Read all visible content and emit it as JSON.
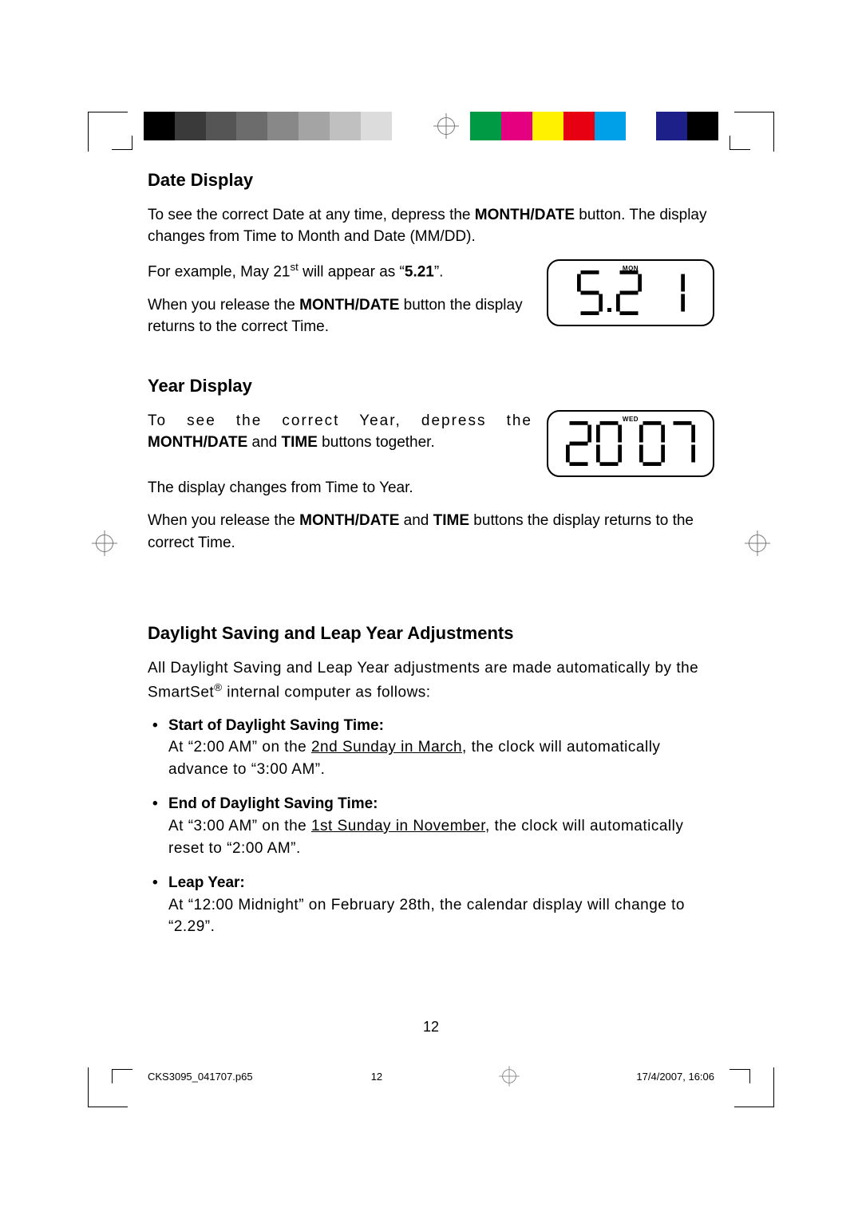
{
  "colorbar": {
    "left": [
      "#000000",
      "#3a3a3a",
      "#555555",
      "#6c6c6c",
      "#888888",
      "#a4a4a4",
      "#c0c0c0",
      "#dcdcdc",
      "#ffffff"
    ],
    "right": [
      "#009944",
      "#e4007f",
      "#fff100",
      "#e60012",
      "#00a0e9",
      "#ffffff",
      "#1d2088",
      "#000000"
    ]
  },
  "sections": {
    "date": {
      "heading": "Date Display",
      "p1_a": "To see the correct Date at any time, depress the ",
      "p1_b": "MONTH/DATE",
      "p1_c": " button. The display changes from Time to Month and Date (MM/DD).",
      "p2_a": "For example, May 21",
      "p2_sup": "st",
      "p2_b": " will appear as “",
      "p2_bold": "5.21",
      "p2_c": "”.",
      "p3_a": "When you release the ",
      "p3_b": "MONTH/DATE",
      "p3_c": " button the display returns to the correct Time.",
      "lcd_day": "MON",
      "lcd_digits": "5.21"
    },
    "year": {
      "heading": "Year Display",
      "p1_a": "To see the correct Year, depress the ",
      "p1_b": "MONTH/DATE",
      "p1_c": " and ",
      "p1_d": "TIME",
      "p1_e": " buttons together.",
      "p2": "The display changes from Time to Year.",
      "p3_a": "When you release the ",
      "p3_b": "MONTH/DATE",
      "p3_c": " and ",
      "p3_d": "TIME",
      "p3_e": " buttons the display returns to the correct Time.",
      "lcd_day": "WED",
      "lcd_digits": "2007"
    },
    "dst": {
      "heading": "Daylight Saving and Leap Year Adjustments",
      "intro_a": "All Daylight Saving and Leap Year adjustments are made automatically by the SmartSet",
      "intro_sup": "®",
      "intro_b": " internal computer as follows:",
      "items": [
        {
          "title": "Start of Daylight Saving Time:",
          "body_a": "At “2:00 AM” on the ",
          "body_u": "2nd Sunday in March",
          "body_b": ", the clock will automatically advance to “3:00 AM”."
        },
        {
          "title": "End of Daylight Saving Time:",
          "body_a": "At “3:00 AM” on the ",
          "body_u": "1st Sunday in November",
          "body_b": ", the clock will automatically reset to “2:00 AM”."
        },
        {
          "title": "Leap Year:",
          "body_a": "At “12:00 Midnight” on February 28th, the calendar display will change to “2.29”.",
          "body_u": "",
          "body_b": ""
        }
      ]
    }
  },
  "page_number": "12",
  "footer": {
    "file": "CKS3095_041707.p65",
    "page": "12",
    "timestamp": "17/4/2007, 16:06"
  },
  "seven_segment": {
    "stroke": "#000000",
    "stroke_width": 5,
    "digit_w": 32,
    "digit_h": 56,
    "small_digit_w": 20,
    "small_digit_h": 38,
    "segments": {
      "0": [
        "a",
        "b",
        "c",
        "d",
        "e",
        "f"
      ],
      "1": [
        "b",
        "c"
      ],
      "2": [
        "a",
        "b",
        "g",
        "e",
        "d"
      ],
      "5": [
        "a",
        "f",
        "g",
        "c",
        "d"
      ],
      "7": [
        "a",
        "b",
        "c"
      ]
    }
  }
}
